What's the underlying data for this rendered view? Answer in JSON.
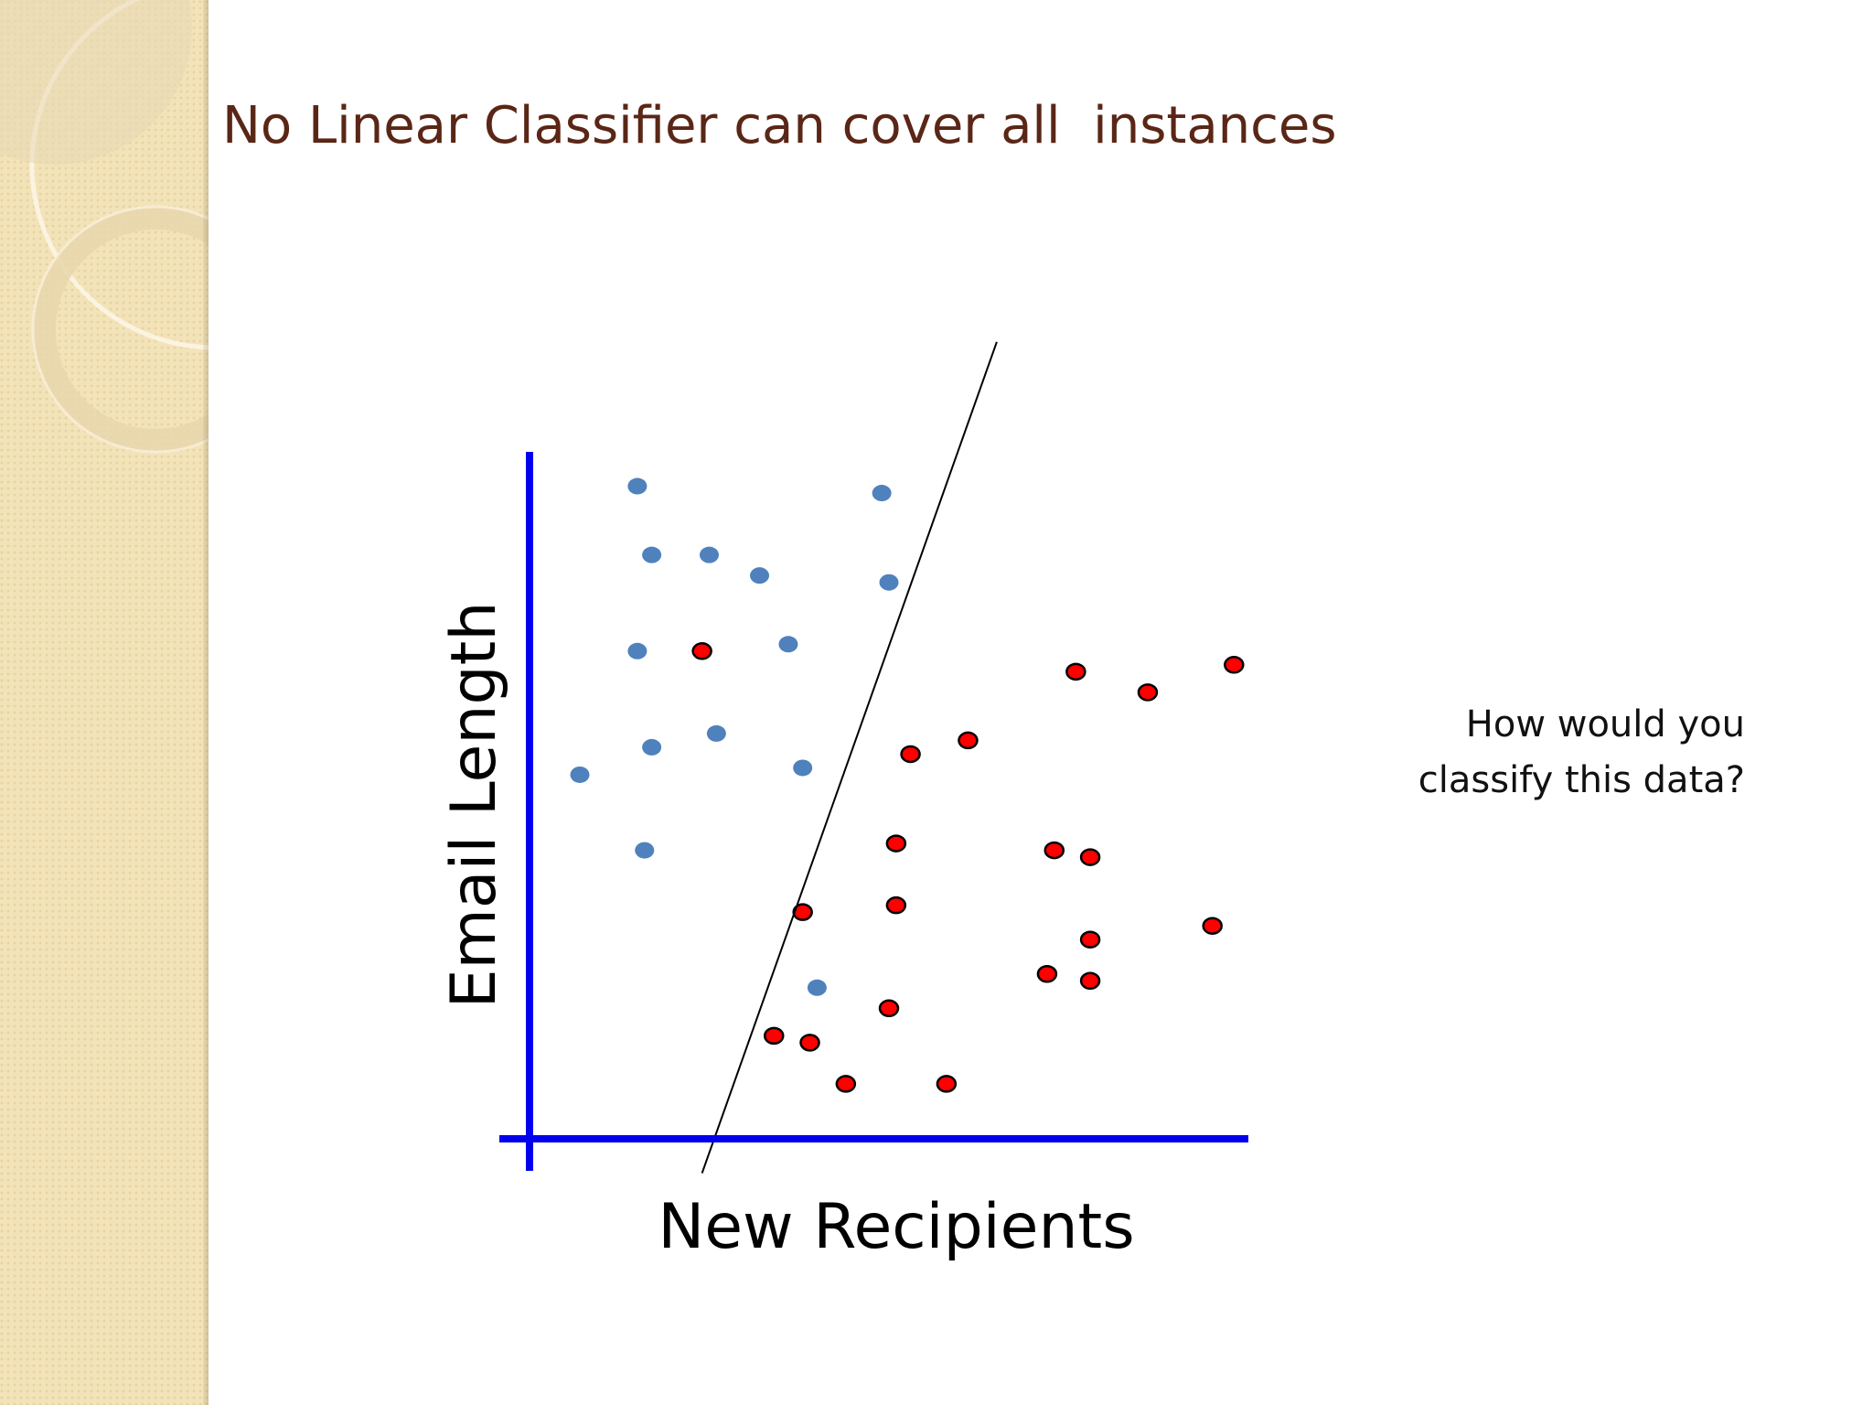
{
  "slide": {
    "title": "No Linear Classifier can cover all  instances",
    "note_line1": "How would you",
    "note_line2": "classify this data?"
  },
  "colors": {
    "title": "#5a2616",
    "axis": "#0000ee",
    "blue_class": "#4f81bd",
    "red_class": "#ff0000",
    "boundary": "#000000"
  },
  "chart_data": {
    "type": "scatter",
    "xlabel": "New Recipients",
    "ylabel": "Email Length",
    "xlim": [
      0,
      100
    ],
    "ylim": [
      0,
      100
    ],
    "grid": false,
    "legend": "none",
    "series": [
      {
        "color": "#4f81bd",
        "points": [
          [
            15,
            95
          ],
          [
            49,
            94
          ],
          [
            17,
            85
          ],
          [
            25,
            85
          ],
          [
            32,
            82
          ],
          [
            50,
            81
          ],
          [
            15,
            71
          ],
          [
            36,
            72
          ],
          [
            26,
            59
          ],
          [
            17,
            57
          ],
          [
            7,
            53
          ],
          [
            38,
            54
          ],
          [
            16,
            42
          ],
          [
            40,
            22
          ]
        ]
      },
      {
        "color": "#ff0000",
        "points": [
          [
            24,
            71
          ],
          [
            76,
            68
          ],
          [
            86,
            65
          ],
          [
            98,
            69
          ],
          [
            53,
            56
          ],
          [
            61,
            58
          ],
          [
            51,
            43
          ],
          [
            73,
            42
          ],
          [
            78,
            41
          ],
          [
            38,
            33
          ],
          [
            51,
            34
          ],
          [
            95,
            31
          ],
          [
            78,
            29
          ],
          [
            72,
            24
          ],
          [
            78,
            23
          ],
          [
            50,
            19
          ],
          [
            34,
            15
          ],
          [
            39,
            14
          ],
          [
            44,
            8
          ],
          [
            58,
            8
          ]
        ]
      }
    ],
    "boundary_line": [
      [
        24,
        -5
      ],
      [
        65,
        116
      ]
    ]
  }
}
